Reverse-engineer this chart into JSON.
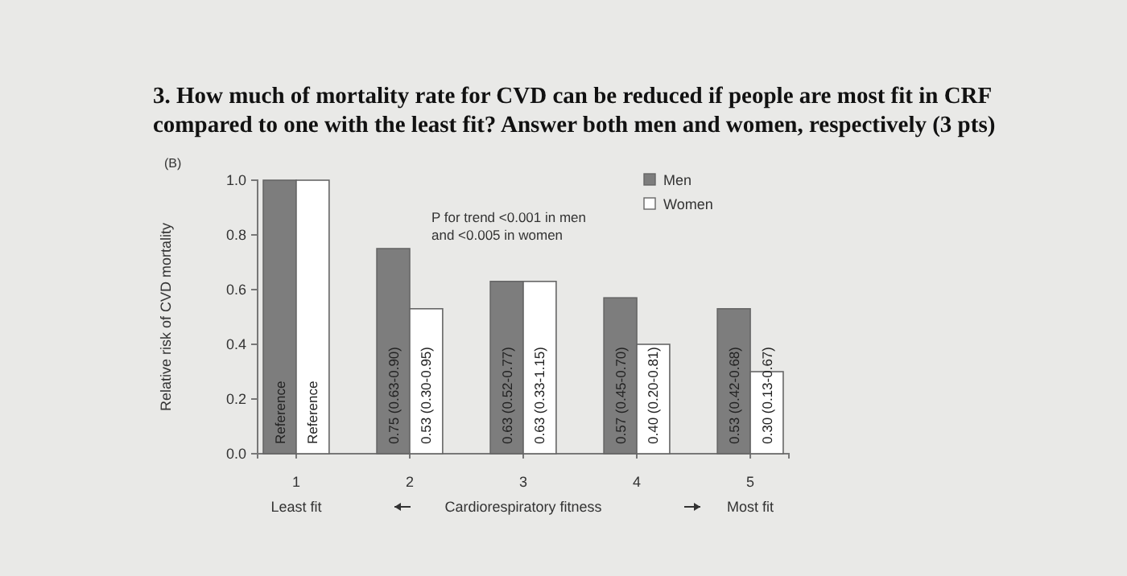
{
  "chart_data": {
    "type": "bar",
    "title": "3. How much of mortality rate for CVD can be reduced if people are most fit in CRF compared to one with the least fit? Answer both men and women, respectively (3 pts)",
    "ylabel": "Relative risk of CVD mortality",
    "xlabel": "Cardiorespiratory fitness",
    "categories": [
      "1",
      "2",
      "3",
      "4",
      "5"
    ],
    "series": [
      {
        "name": "Men",
        "color": "#7d7d7d",
        "values": [
          1.0,
          0.75,
          0.63,
          0.57,
          0.53
        ],
        "value_labels": [
          "Reference",
          "0.75 (0.63-0.90)",
          "0.63 (0.52-0.77)",
          "0.57 (0.45-0.70)",
          "0.53 (0.42-0.68)"
        ]
      },
      {
        "name": "Women",
        "color": "#ffffff",
        "values": [
          1.0,
          0.53,
          0.63,
          0.4,
          0.3
        ],
        "value_labels": [
          "Reference",
          "0.53 (0.30-0.95)",
          "0.63 (0.33-1.15)",
          "0.40 (0.20-0.81)",
          "0.30 (0.13-0.67)"
        ]
      }
    ],
    "ylim": [
      0,
      1.0
    ],
    "yticks": [
      {
        "value": 0,
        "label": "0.0"
      },
      0.2,
      0.4,
      0.6,
      0.8,
      {
        "value": 1,
        "label": "1.0"
      }
    ],
    "grid": false,
    "legend": "top right",
    "annotations": [
      "(B)",
      "P for trend <0.001 in men\nand <0.005 in women",
      "Least fit",
      "Most fit"
    ]
  }
}
